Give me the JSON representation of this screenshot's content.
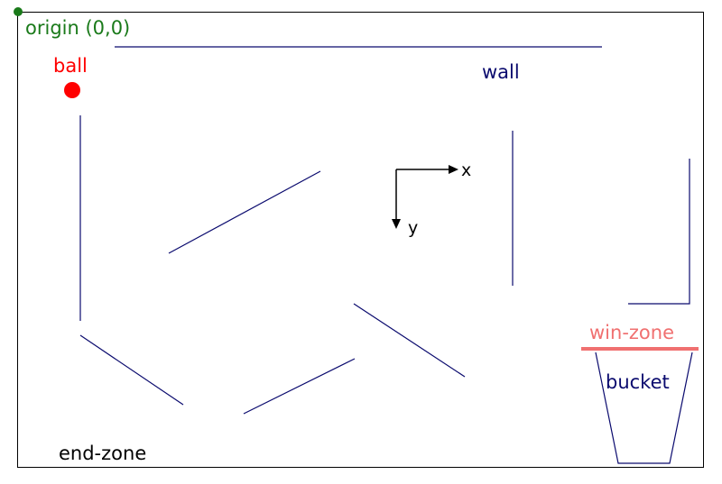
{
  "labels": {
    "origin": "origin (0,0)",
    "ball": "ball",
    "wall": "wall",
    "x_axis": "x",
    "y_axis": "y",
    "win_zone": "win-zone",
    "bucket": "bucket",
    "end_zone": "end-zone"
  },
  "colors": {
    "origin": "#1a7a1a",
    "ball": "#ff0000",
    "wall": "#0a0a6e",
    "win_zone": "#f07070",
    "bucket": "#0a0a6e",
    "axes": "#000000",
    "end_zone": "#000000"
  }
}
